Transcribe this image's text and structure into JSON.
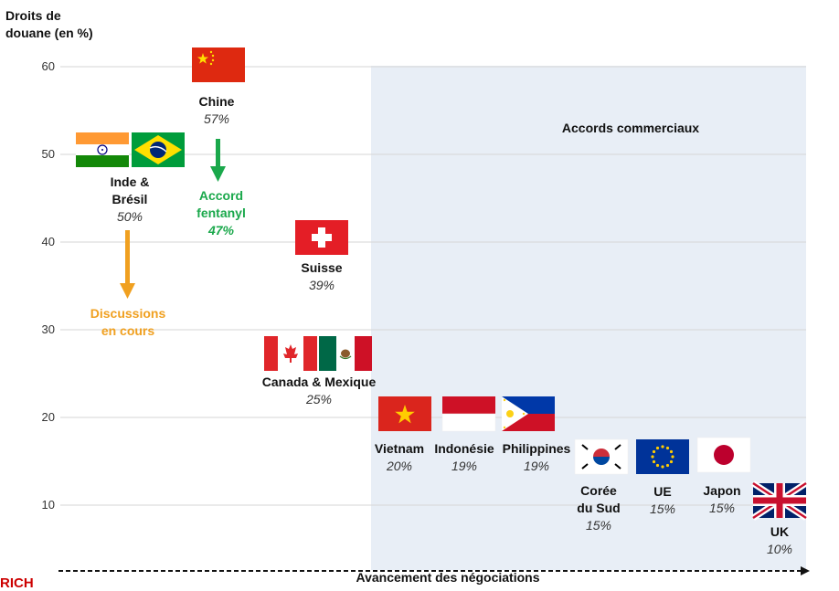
{
  "chart_data": {
    "type": "scatter",
    "ylabel": "Droits de douane (en %)",
    "xlabel": "Avancement des négociations",
    "ylim": [
      5,
      62
    ],
    "yticks": [
      10,
      20,
      30,
      40,
      50,
      60
    ],
    "grid": true,
    "shaded_region_label": "Accords commerciaux",
    "points": [
      {
        "name": "Chine",
        "value": 57,
        "pct": "57%",
        "flags": [
          "china"
        ]
      },
      {
        "name": "Inde & Brésil",
        "value": 50,
        "pct": "50%",
        "flags": [
          "india",
          "brazil"
        ]
      },
      {
        "name": "Suisse",
        "value": 39,
        "pct": "39%",
        "flags": [
          "switzerland"
        ]
      },
      {
        "name": "Canada & Mexique",
        "value": 25,
        "pct": "25%",
        "flags": [
          "canada",
          "mexico"
        ]
      },
      {
        "name": "Vietnam",
        "value": 20,
        "pct": "20%",
        "flags": [
          "vietnam"
        ]
      },
      {
        "name": "Indonésie",
        "value": 19,
        "pct": "19%",
        "flags": [
          "indonesia"
        ]
      },
      {
        "name": "Philippines",
        "value": 19,
        "pct": "19%",
        "flags": [
          "philippines"
        ]
      },
      {
        "name": "Corée du Sud",
        "value": 15,
        "pct": "15%",
        "flags": [
          "south-korea"
        ]
      },
      {
        "name": "UE",
        "value": 15,
        "pct": "15%",
        "flags": [
          "eu"
        ]
      },
      {
        "name": "Japon",
        "value": 15,
        "pct": "15%",
        "flags": [
          "japan"
        ]
      },
      {
        "name": "UK",
        "value": 10,
        "pct": "10%",
        "flags": [
          "uk"
        ]
      }
    ],
    "annotations": [
      {
        "text": "Accord fentanyl",
        "value": "47%",
        "color": "#1aa84b"
      },
      {
        "text": "Discussions en cours",
        "color": "#f0a020"
      }
    ]
  },
  "text": {
    "ylabel_line1": "Droits de",
    "ylabel_line2": "douane (en %)",
    "tick_60": "60",
    "tick_50": "50",
    "tick_40": "40",
    "tick_30": "30",
    "tick_20": "20",
    "tick_10": "10",
    "band": "Accords commerciaux",
    "xlabel": "Avancement des négociations",
    "chine": "Chine",
    "chine_pct": "57%",
    "inde_l1": "Inde &",
    "inde_l2": "Brésil",
    "inde_pct": "50%",
    "fent_l1": "Accord",
    "fent_l2": "fentanyl",
    "fent_pct": "47%",
    "disc_l1": "Discussions",
    "disc_l2": "en cours",
    "suisse": "Suisse",
    "suisse_pct": "39%",
    "canmex": "Canada & Mexique",
    "canmex_pct": "25%",
    "vietnam": "Vietnam",
    "vietnam_pct": "20%",
    "indonesie": "Indonésie",
    "indonesie_pct": "19%",
    "philippines": "Philippines",
    "philippines_pct": "19%",
    "coree_l1": "Corée",
    "coree_l2": "du Sud",
    "coree_pct": "15%",
    "ue": "UE",
    "ue_pct": "15%",
    "japon": "Japon",
    "japon_pct": "15%",
    "uk": "UK",
    "uk_pct": "10%",
    "corner_mark": "RICH"
  },
  "colors": {
    "band": "#e8eef6",
    "grid": "#d6d6d6",
    "fentanyl": "#1aa84b",
    "discussions": "#f0a020"
  }
}
